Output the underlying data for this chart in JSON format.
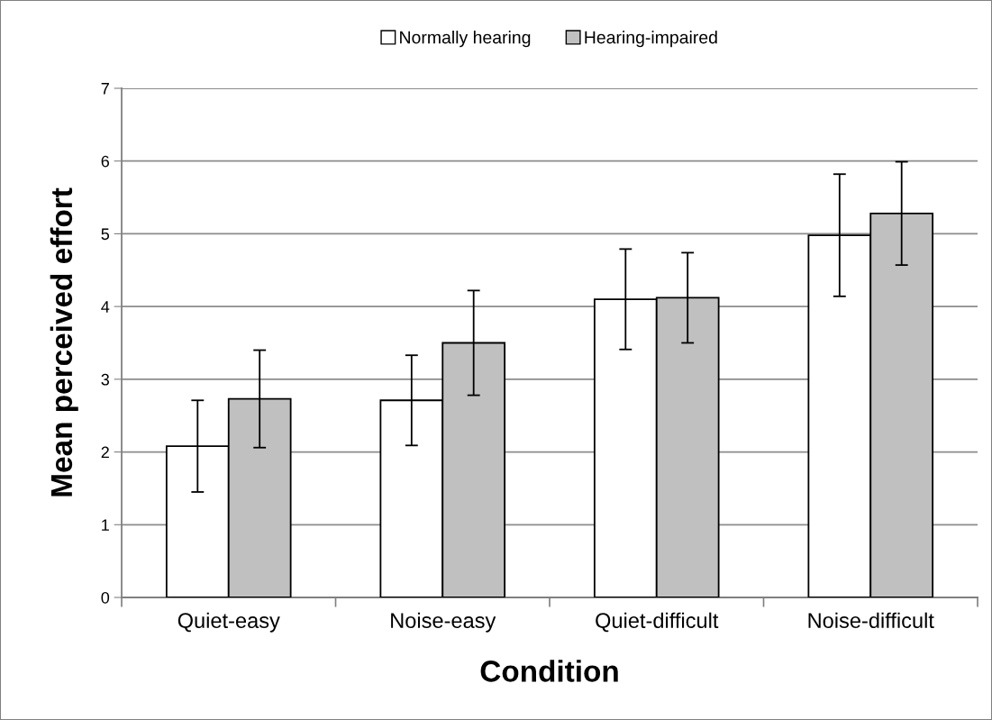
{
  "chart_data": {
    "type": "bar",
    "xlabel": "Condition",
    "ylabel": "Mean perceived effort",
    "categories": [
      "Quiet-easy",
      "Noise-easy",
      "Quiet-difficult",
      "Noise-difficult"
    ],
    "series": [
      {
        "name": "Normally hearing",
        "color": "#ffffff",
        "values": [
          2.08,
          2.71,
          4.1,
          4.98
        ],
        "errors": [
          0.63,
          0.62,
          0.69,
          0.84
        ]
      },
      {
        "name": "Hearing-impaired",
        "color": "#c0c0c0",
        "values": [
          2.73,
          3.5,
          4.12,
          5.28
        ],
        "errors": [
          0.67,
          0.72,
          0.62,
          0.71
        ]
      }
    ],
    "ylim": [
      0,
      7
    ],
    "yticks": [
      0,
      1,
      2,
      3,
      4,
      5,
      6,
      7
    ],
    "grid": "y",
    "legend": "top"
  }
}
